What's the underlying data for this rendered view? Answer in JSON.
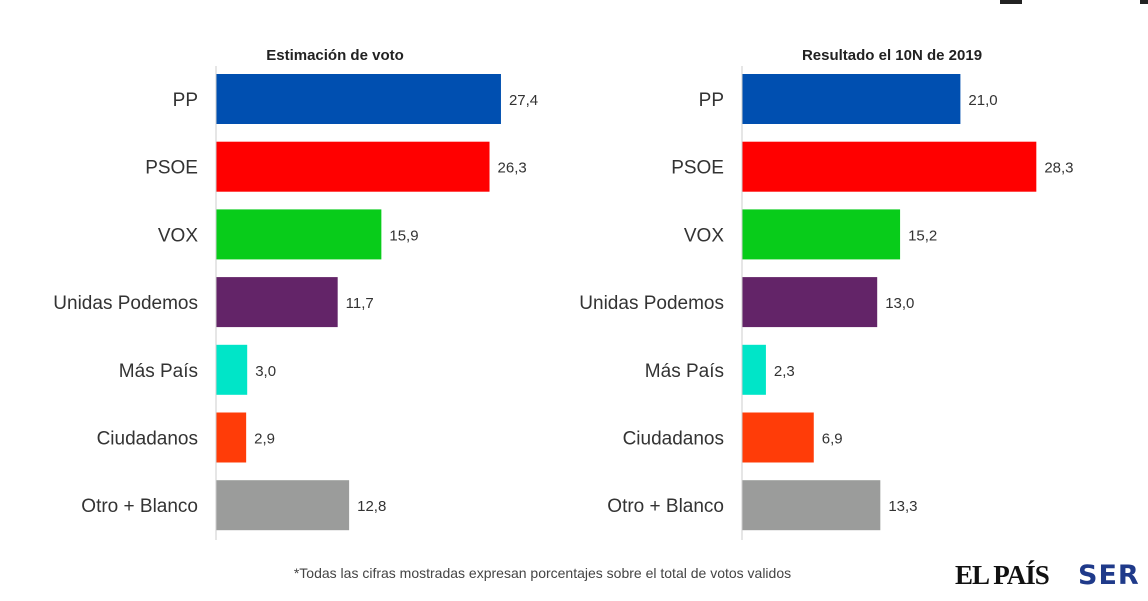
{
  "chart_data": [
    {
      "type": "bar",
      "orientation": "horizontal",
      "title": "Estimación de voto",
      "categories": [
        "PP",
        "PSOE",
        "VOX",
        "Unidas Podemos",
        "Más País",
        "Ciudadanos",
        "Otro + Blanco"
      ],
      "values": [
        27.4,
        26.3,
        15.9,
        11.7,
        3.0,
        2.9,
        12.8
      ],
      "value_labels": [
        "27,4",
        "26,3",
        "15,9",
        "11,7",
        "3,0",
        "2,9",
        "12,8"
      ],
      "xlim": [
        0,
        35
      ],
      "grid": false,
      "legend": "none"
    },
    {
      "type": "bar",
      "orientation": "horizontal",
      "title": "Resultado el 10N de 2019",
      "categories": [
        "PP",
        "PSOE",
        "VOX",
        "Unidas Podemos",
        "Más País",
        "Ciudadanos",
        "Otro + Blanco"
      ],
      "values": [
        21.0,
        28.3,
        15.2,
        13.0,
        2.3,
        6.9,
        13.3
      ],
      "value_labels": [
        "21,0",
        "28,3",
        "15,2",
        "13,0",
        "2,3",
        "6,9",
        "13,3"
      ],
      "xlim": [
        0,
        35
      ],
      "grid": false,
      "legend": "none"
    }
  ],
  "party_colors": [
    "#004fb0",
    "#ff0000",
    "#08cc1a",
    "#632468",
    "#00e5c8",
    "#ff3c08",
    "#9b9c9b"
  ],
  "footnote": "*Todas las cifras mostradas expresan porcentajes sobre el total de votos validos",
  "logos": {
    "el_pais": "EL PAÍS",
    "ser": "SER"
  }
}
